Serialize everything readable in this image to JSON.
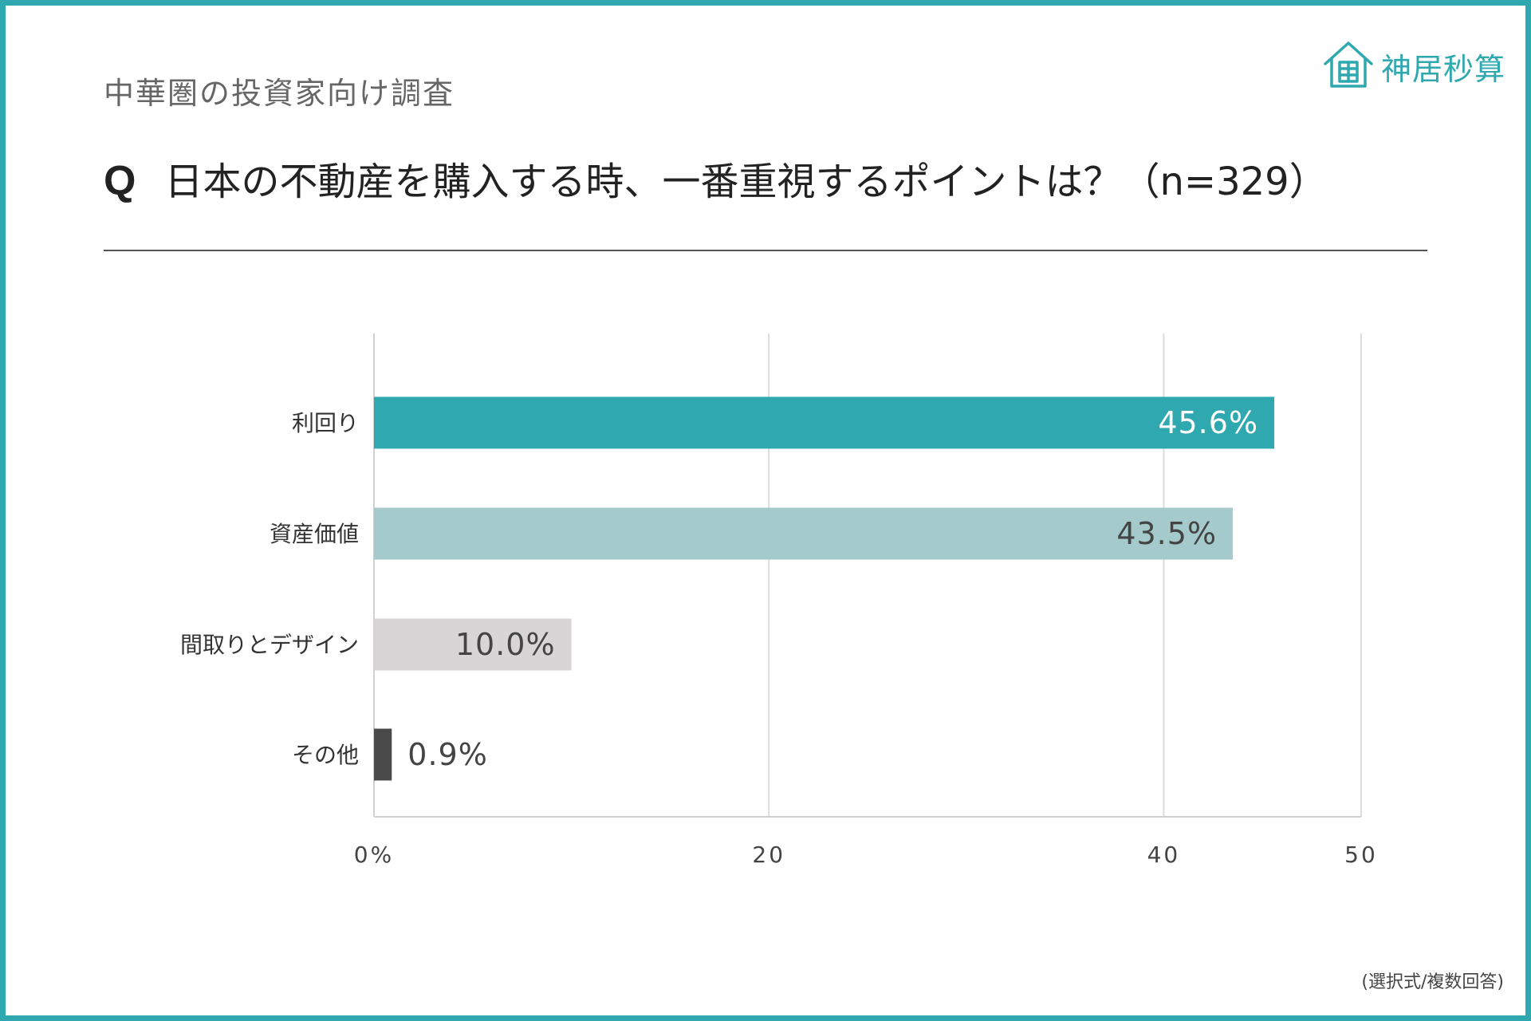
{
  "header": {
    "subtitle": "中華圏の投資家向け調査",
    "question_marker": "Q",
    "question": "日本の不動産を購入する時、一番重視するポイントは？（n=329）",
    "logo_text": "神居秒算",
    "logo_icon": "house-grid-icon"
  },
  "footnote": "(選択式/複数回答)",
  "colors": {
    "frame": "#2fa8b0",
    "accent": "#2fa8b0",
    "bars": [
      "#30a8b0",
      "#a4cacb",
      "#d7d5d6",
      "#4a4a4a"
    ],
    "value_labels": [
      "#ffffff",
      "#444444",
      "#444444",
      "#444444"
    ]
  },
  "chart_data": {
    "type": "bar",
    "orientation": "horizontal",
    "categories": [
      "利回り",
      "資産価値",
      "間取りとデザイン",
      "その他"
    ],
    "values": [
      45.6,
      43.5,
      10.0,
      0.9
    ],
    "value_labels": [
      "45.6%",
      "43.5%",
      "10.0%",
      "0.9%"
    ],
    "xlim": [
      0,
      50
    ],
    "xticks": [
      0,
      20,
      40,
      50
    ],
    "xtick_labels": [
      "0%",
      "20",
      "40",
      "50"
    ],
    "grid": true,
    "title": "",
    "xlabel": "",
    "ylabel": ""
  }
}
